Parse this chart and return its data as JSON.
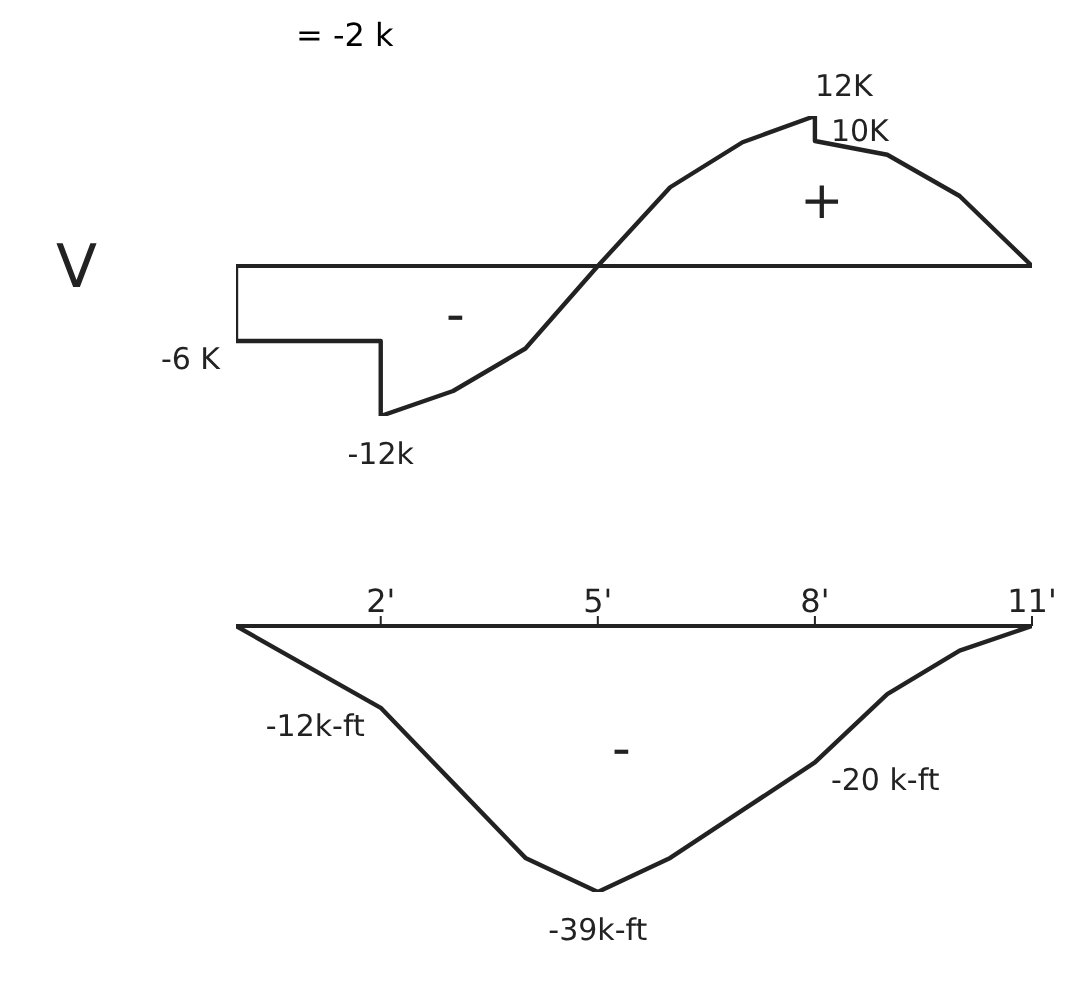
{
  "chart_data": [
    {
      "type": "line",
      "title": "= -2 k",
      "ylabel": "V",
      "xlim": [
        0,
        11
      ],
      "tick_labels": false,
      "marker": "none",
      "line_style": "solid",
      "ref_lines": [
        {
          "axis": "y",
          "value": 0,
          "color": "#222222"
        }
      ],
      "annotations": [
        "-",
        "+"
      ],
      "series": [
        {
          "color": "#222222",
          "x": [
            0,
            0,
            2,
            2,
            3,
            4,
            5,
            6,
            7,
            8,
            8,
            9,
            10,
            11
          ],
          "values": [
            0,
            -6,
            -6,
            -12,
            -10,
            -6.6,
            0,
            6.3,
            9.9,
            12,
            10,
            8.9,
            5.6,
            0
          ],
          "value_labels": [
            null,
            "-6 K",
            null,
            "-12k",
            null,
            null,
            null,
            null,
            null,
            "12K",
            "10K",
            null,
            null,
            null
          ]
        }
      ]
    },
    {
      "type": "line",
      "xlim": [
        0,
        11
      ],
      "xticks": [
        {
          "value": 2,
          "label": "2'"
        },
        {
          "value": 5,
          "label": "5'"
        },
        {
          "value": 8,
          "label": "8'"
        },
        {
          "value": 11,
          "label": "11'"
        }
      ],
      "tick_labels": "x",
      "marker": "none",
      "line_style": "solid",
      "annotations": [
        "-"
      ],
      "series": [
        {
          "color": "#222222",
          "x": [
            0,
            2,
            3,
            4,
            5,
            6,
            7,
            8,
            9,
            10,
            11
          ],
          "values": [
            0,
            -12,
            -23,
            -34,
            -39,
            -34,
            -27,
            -20,
            -10,
            -3.6,
            0
          ],
          "value_labels": [
            null,
            "-12k-ft",
            null,
            null,
            "-39k-ft",
            null,
            null,
            "-20 k-ft",
            null,
            null,
            null
          ]
        }
      ]
    }
  ]
}
